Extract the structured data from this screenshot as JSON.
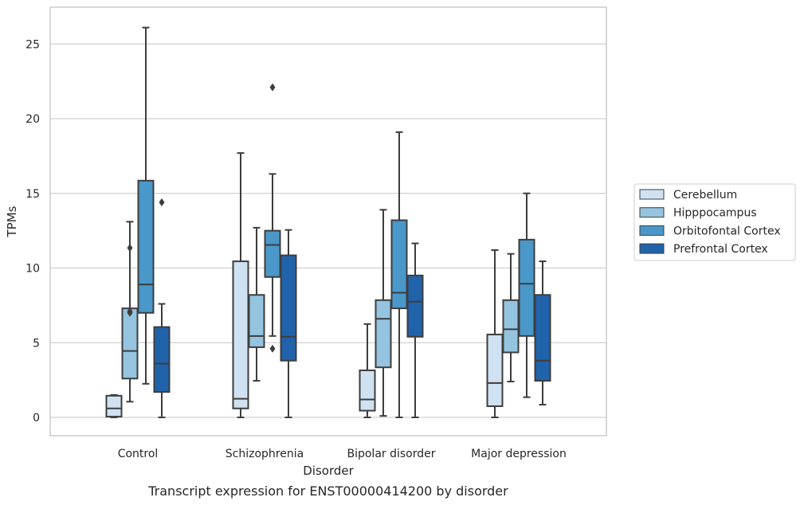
{
  "chart_data": {
    "type": "box",
    "caption": "Transcript expression for ENST00000414200 by disorder",
    "xlabel": "Disorder",
    "ylabel": "TPMs",
    "ylim": [
      -1.25,
      27.2
    ],
    "yticks": [
      0,
      5,
      10,
      15,
      20,
      25
    ],
    "grid": "horizontal",
    "legend_position": "right",
    "categories": [
      "Control",
      "Schizophrenia",
      "Bipolar disorder",
      "Major depression"
    ],
    "series": [
      {
        "name": "Cerebellum",
        "color": "#d0e1f2",
        "boxes": [
          {
            "whislo": 0.0,
            "q1": 0.05,
            "med": 0.6,
            "q3": 1.45,
            "whishi": 1.5,
            "fliers": []
          },
          {
            "whislo": 0.0,
            "q1": 0.6,
            "med": 1.25,
            "q3": 10.45,
            "whishi": 17.7,
            "fliers": []
          },
          {
            "whislo": 0.0,
            "q1": 0.45,
            "med": 1.2,
            "q3": 3.15,
            "whishi": 6.25,
            "fliers": []
          },
          {
            "whislo": 0.0,
            "q1": 0.75,
            "med": 2.3,
            "q3": 5.55,
            "whishi": 11.2,
            "fliers": []
          }
        ]
      },
      {
        "name": "Hipppocampus",
        "color": "#94c4df",
        "boxes": [
          {
            "whislo": 1.05,
            "q1": 2.6,
            "med": 4.45,
            "q3": 7.3,
            "whishi": 13.1,
            "fliers": [
              7.0,
              7.1,
              11.35
            ]
          },
          {
            "whislo": 2.45,
            "q1": 4.7,
            "med": 5.45,
            "q3": 8.2,
            "whishi": 12.7,
            "fliers": []
          },
          {
            "whislo": 0.1,
            "q1": 3.35,
            "med": 6.6,
            "q3": 7.85,
            "whishi": 13.9,
            "fliers": []
          },
          {
            "whislo": 2.4,
            "q1": 4.35,
            "med": 5.9,
            "q3": 7.85,
            "whishi": 10.95,
            "fliers": []
          }
        ]
      },
      {
        "name": "Orbitofontal Cortex",
        "color": "#4a98c9",
        "boxes": [
          {
            "whislo": 2.25,
            "q1": 7.0,
            "med": 8.9,
            "q3": 15.85,
            "whishi": 26.1,
            "fliers": []
          },
          {
            "whislo": 5.45,
            "q1": 9.4,
            "med": 11.55,
            "q3": 12.5,
            "whishi": 16.3,
            "fliers": [
              4.6,
              22.1
            ]
          },
          {
            "whislo": 0.0,
            "q1": 7.3,
            "med": 8.35,
            "q3": 13.2,
            "whishi": 19.1,
            "fliers": []
          },
          {
            "whislo": 1.35,
            "q1": 5.45,
            "med": 8.95,
            "q3": 11.9,
            "whishi": 15.0,
            "fliers": []
          }
        ]
      },
      {
        "name": "Prefrontal Cortex",
        "color": "#2163aa",
        "boxes": [
          {
            "whislo": 0.0,
            "q1": 1.7,
            "med": 3.6,
            "q3": 6.05,
            "whishi": 7.6,
            "fliers": [
              14.4
            ]
          },
          {
            "whislo": 0.0,
            "q1": 3.8,
            "med": 5.4,
            "q3": 10.85,
            "whishi": 12.55,
            "fliers": []
          },
          {
            "whislo": 0.0,
            "q1": 5.4,
            "med": 7.75,
            "q3": 9.5,
            "whishi": 11.65,
            "fliers": []
          },
          {
            "whislo": 0.85,
            "q1": 2.45,
            "med": 3.8,
            "q3": 8.2,
            "whishi": 10.45,
            "fliers": []
          }
        ]
      }
    ]
  }
}
